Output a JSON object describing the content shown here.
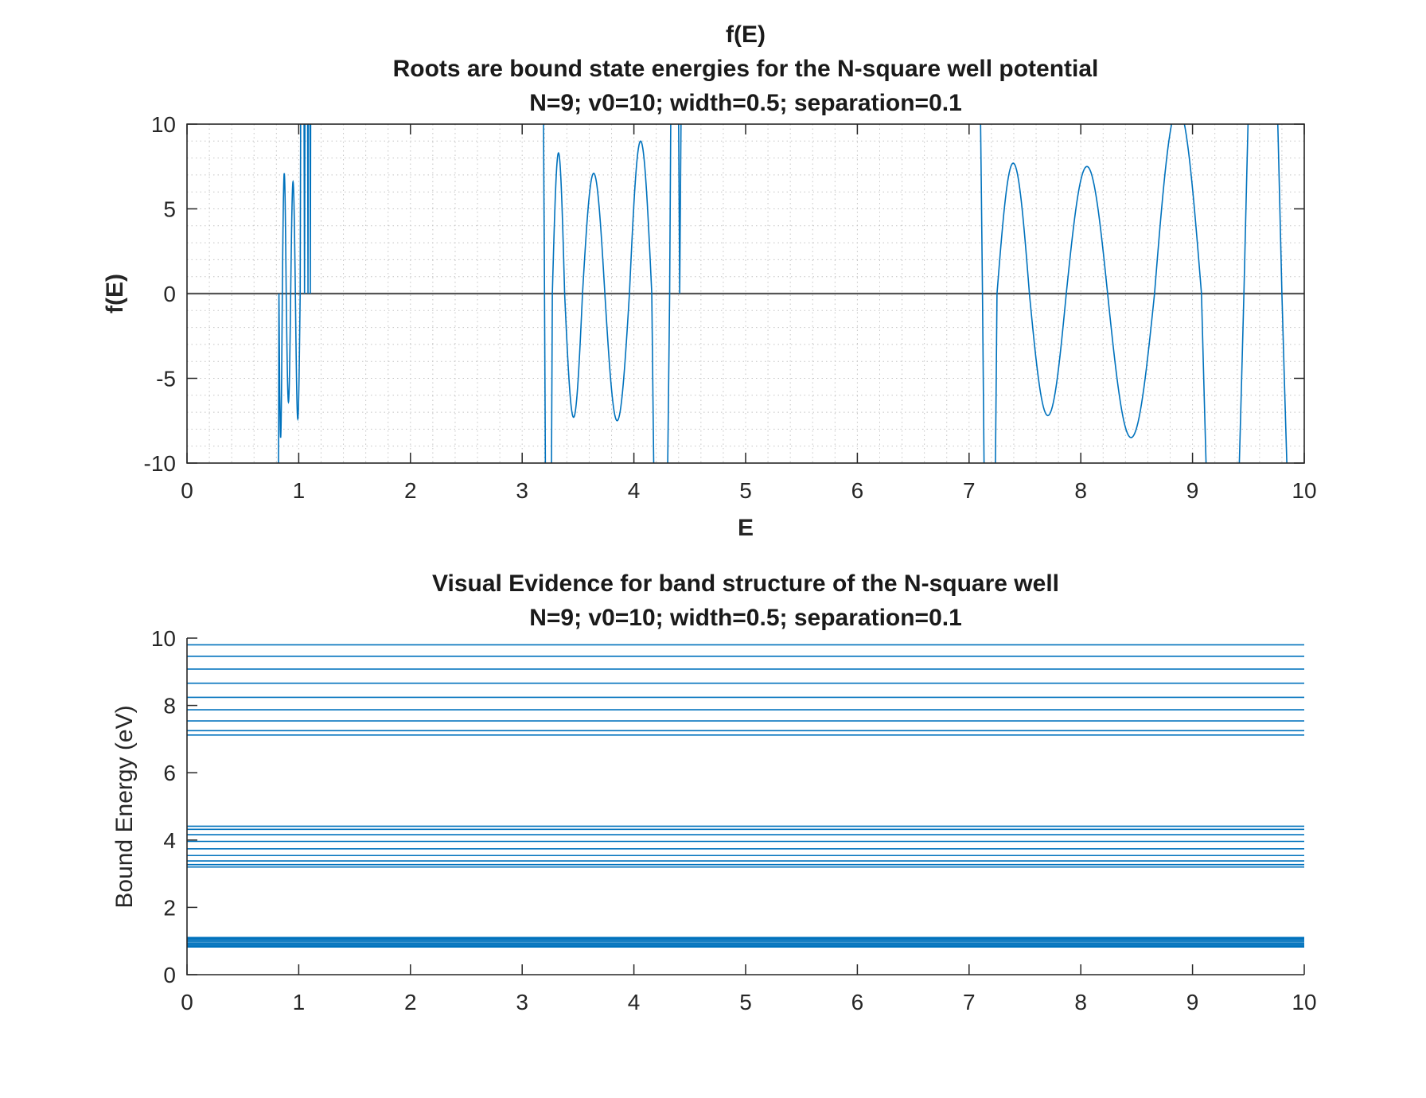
{
  "chart_data": [
    {
      "type": "line",
      "title_lines": [
        "f(E)",
        "Roots are bound state energies for the N-square well potential",
        "N=9; v0=10; width=0.5; separation=0.1"
      ],
      "xlabel": "E",
      "ylabel": "f(E)",
      "xlim": [
        0,
        10
      ],
      "ylim": [
        -10,
        10
      ],
      "xticks": [
        "0",
        "1",
        "2",
        "3",
        "4",
        "5",
        "6",
        "7",
        "8",
        "9",
        "10"
      ],
      "yticks": [
        "-10",
        "-5",
        "0",
        "5",
        "10"
      ],
      "grid": "on (dotted, with minor grid)",
      "zero_line_color": "#555555",
      "series_color": "#0072BD",
      "bands": [
        {
          "roots": [
            0.823,
            0.853,
            0.888,
            0.928,
            0.97,
            1.013,
            1.052,
            1.083,
            1.104
          ],
          "extrema": [
            -30,
            -8.5,
            7.1,
            -6.4,
            6.6,
            -7.4,
            30,
            30,
            30,
            30
          ]
        },
        {
          "roots": [
            3.2,
            3.27,
            3.38,
            3.54,
            3.74,
            3.96,
            4.16,
            4.32,
            4.41
          ],
          "extrema": [
            30,
            -30,
            8.3,
            -7.3,
            7.1,
            -7.5,
            9.0,
            -30,
            30,
            30
          ]
        },
        {
          "roots": [
            7.12,
            7.25,
            7.54,
            7.87,
            8.24,
            8.66,
            9.08,
            9.46,
            9.8
          ],
          "extrema": [
            30,
            -30,
            7.7,
            -7.2,
            7.5,
            -8.5,
            11,
            -30,
            30,
            -30
          ]
        }
      ]
    },
    {
      "type": "line",
      "title_lines": [
        "Visual Evidence for band structure of the N-square well",
        "N=9; v0=10; width=0.5; separation=0.1"
      ],
      "xlabel": "",
      "ylabel": "Bound Energy (eV)",
      "xlim": [
        0,
        10
      ],
      "ylim": [
        0,
        10
      ],
      "xticks": [
        "0",
        "1",
        "2",
        "3",
        "4",
        "5",
        "6",
        "7",
        "8",
        "9",
        "10"
      ],
      "yticks": [
        "0",
        "2",
        "4",
        "6",
        "8",
        "10"
      ],
      "grid": "off",
      "series_color": "#0072BD",
      "energy_levels": [
        0.823,
        0.853,
        0.888,
        0.928,
        0.97,
        1.013,
        1.052,
        1.083,
        1.104,
        3.2,
        3.27,
        3.38,
        3.54,
        3.74,
        3.96,
        4.16,
        4.32,
        4.41,
        7.12,
        7.25,
        7.54,
        7.87,
        8.24,
        8.66,
        9.08,
        9.46,
        9.8
      ]
    }
  ]
}
